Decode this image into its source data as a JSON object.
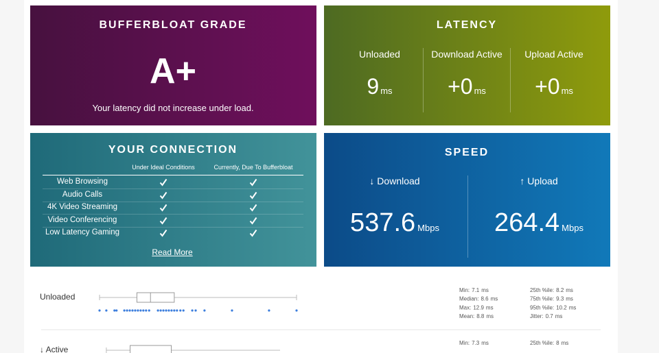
{
  "grade": {
    "title": "BUFFERBLOAT GRADE",
    "grade": "A+",
    "note": "Your latency did not increase under load."
  },
  "latency": {
    "title": "LATENCY",
    "items": [
      {
        "label": "Unloaded",
        "value": "9",
        "unit": "ms"
      },
      {
        "label": "Download Active",
        "value": "+0",
        "unit": "ms"
      },
      {
        "label": "Upload Active",
        "value": "+0",
        "unit": "ms"
      }
    ]
  },
  "connection": {
    "title": "YOUR CONNECTION",
    "columns": [
      "Under Ideal Conditions",
      "Currently, Due To Bufferbloat"
    ],
    "rows": [
      "Web Browsing",
      "Audio Calls",
      "4K Video Streaming",
      "Video Conferencing",
      "Low Latency Gaming"
    ],
    "link": "Read More"
  },
  "speed": {
    "title": "SPEED",
    "items": [
      {
        "label": "↓ Download",
        "value": "537.6",
        "unit": "Mbps"
      },
      {
        "label": "↑ Upload",
        "value": "264.4",
        "unit": "Mbps"
      }
    ]
  },
  "details": [
    {
      "label": "Unloaded",
      "left": [
        {
          "label": "Min:",
          "value": 7.1,
          "unit": "ms"
        },
        {
          "label": "Median:",
          "value": 8.6,
          "unit": "ms"
        },
        {
          "label": "Max:",
          "value": 12.9,
          "unit": "ms"
        },
        {
          "label": "Mean:",
          "value": 8.8,
          "unit": "ms"
        }
      ],
      "right": [
        {
          "label": "25th %ile:",
          "value": 8.2,
          "unit": "ms"
        },
        {
          "label": "75th %ile:",
          "value": 9.3,
          "unit": "ms"
        },
        {
          "label": "95th %ile:",
          "value": 10.2,
          "unit": "ms"
        },
        {
          "label": "Jitter:",
          "value": 0.7,
          "unit": "ms"
        }
      ],
      "samples": [
        7.1,
        7.3,
        7.54,
        7.6,
        7.83,
        7.91,
        7.99,
        8.07,
        8.15,
        8.23,
        8.31,
        8.39,
        8.47,
        8.56,
        8.82,
        8.9,
        8.98,
        9.06,
        9.14,
        9.22,
        9.3,
        9.38,
        9.48,
        9.57,
        9.83,
        9.93,
        10.19,
        11.0,
        12.09,
        12.9
      ]
    },
    {
      "label": "↓ Active",
      "left": [
        {
          "label": "Min:",
          "value": 7.3,
          "unit": "ms"
        }
      ],
      "right": [
        {
          "label": "25th %ile:",
          "value": 8,
          "unit": "ms"
        }
      ],
      "samples": []
    }
  ]
}
